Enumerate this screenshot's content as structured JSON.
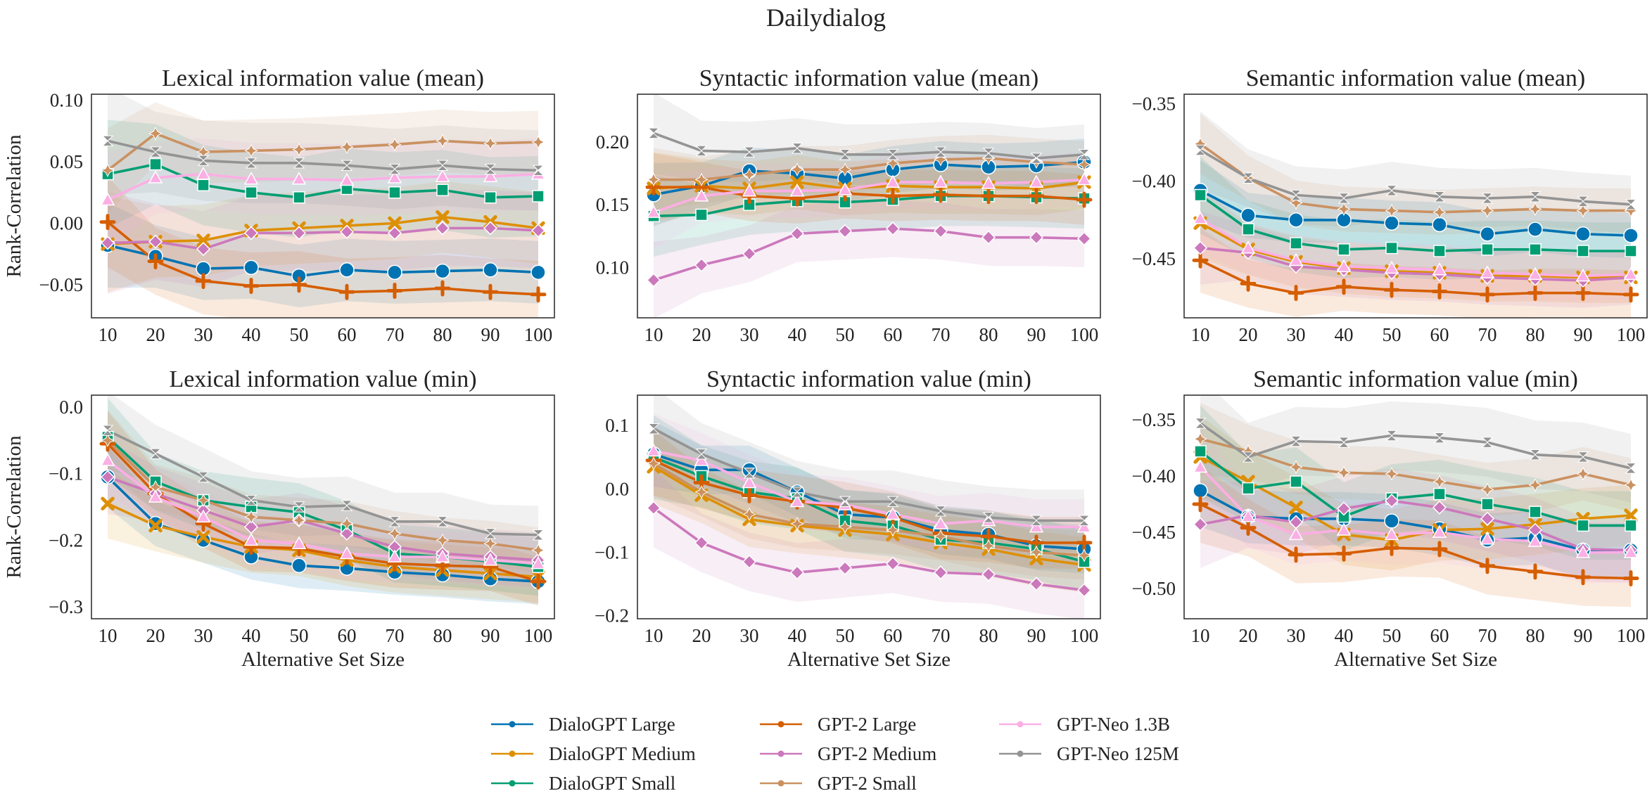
{
  "title": "Dailydialog",
  "colors": {
    "DialoGPT Large": "#0173b2",
    "DialoGPT Medium": "#de8f05",
    "DialoGPT Small": "#029e73",
    "GPT-2 Large": "#d55e00",
    "GPT-2 Medium": "#cc78bc",
    "GPT-2 Small": "#ca9161",
    "GPT-Neo 1.3B": "#fbafe4",
    "GPT-Neo 125M": "#949494"
  },
  "legend": [
    "DialoGPT Large",
    "DialoGPT Medium",
    "DialoGPT Small",
    "GPT-2 Large",
    "GPT-2 Medium",
    "GPT-2 Small",
    "GPT-Neo 1.3B",
    "GPT-Neo 125M"
  ],
  "chart_data": [
    {
      "type": "line",
      "title": "Lexical information value (mean)",
      "xlabel": "",
      "ylabel": "Rank-Correlation",
      "x": [
        10,
        20,
        30,
        40,
        50,
        60,
        70,
        80,
        90,
        100
      ],
      "ylim": [
        -0.077,
        0.105
      ],
      "yticks": [
        0.1,
        0.05,
        0.0,
        -0.05
      ],
      "ytick_labels": [
        "0.10",
        "0.05",
        "0.00",
        "−0.05"
      ],
      "band": 0.03,
      "series": [
        {
          "name": "DialoGPT Large",
          "values": [
            -0.018,
            -0.027,
            -0.037,
            -0.036,
            -0.043,
            -0.038,
            -0.04,
            -0.039,
            -0.038,
            -0.04
          ]
        },
        {
          "name": "DialoGPT Medium",
          "values": [
            -0.017,
            -0.015,
            -0.014,
            -0.006,
            -0.004,
            -0.002,
            0.0,
            0.005,
            0.001,
            -0.004
          ]
        },
        {
          "name": "DialoGPT Small",
          "values": [
            0.04,
            0.048,
            0.031,
            0.025,
            0.021,
            0.028,
            0.025,
            0.027,
            0.021,
            0.022
          ]
        },
        {
          "name": "GPT-2 Large",
          "values": [
            0.001,
            -0.031,
            -0.047,
            -0.051,
            -0.05,
            -0.056,
            -0.055,
            -0.053,
            -0.056,
            -0.058
          ]
        },
        {
          "name": "GPT-2 Medium",
          "values": [
            -0.016,
            -0.015,
            -0.021,
            -0.008,
            -0.008,
            -0.007,
            -0.008,
            -0.004,
            -0.004,
            -0.006
          ]
        },
        {
          "name": "GPT-2 Small",
          "values": [
            0.043,
            0.073,
            0.058,
            0.059,
            0.06,
            0.062,
            0.064,
            0.067,
            0.065,
            0.066
          ]
        },
        {
          "name": "GPT-Neo 1.3B",
          "values": [
            0.019,
            0.037,
            0.04,
            0.036,
            0.036,
            0.035,
            0.037,
            0.038,
            0.038,
            0.04
          ]
        },
        {
          "name": "GPT-Neo 125M",
          "values": [
            0.067,
            0.058,
            0.051,
            0.049,
            0.049,
            0.047,
            0.044,
            0.047,
            0.044,
            0.043
          ]
        }
      ]
    },
    {
      "type": "line",
      "title": "Syntactic information value (mean)",
      "xlabel": "",
      "ylabel": "",
      "x": [
        10,
        20,
        30,
        40,
        50,
        60,
        70,
        80,
        90,
        100
      ],
      "ylim": [
        0.06,
        0.238
      ],
      "yticks": [
        0.2,
        0.15,
        0.1
      ],
      "ytick_labels": [
        "0.20",
        "0.15",
        "0.10"
      ],
      "band": 0.022,
      "series": [
        {
          "name": "DialoGPT Large",
          "values": [
            0.158,
            0.165,
            0.177,
            0.175,
            0.171,
            0.178,
            0.182,
            0.18,
            0.181,
            0.184
          ]
        },
        {
          "name": "DialoGPT Medium",
          "values": [
            0.163,
            0.165,
            0.163,
            0.168,
            0.163,
            0.165,
            0.164,
            0.164,
            0.163,
            0.168
          ]
        },
        {
          "name": "DialoGPT Small",
          "values": [
            0.141,
            0.142,
            0.15,
            0.153,
            0.152,
            0.154,
            0.157,
            0.157,
            0.156,
            0.155
          ]
        },
        {
          "name": "GPT-2 Large",
          "values": [
            0.164,
            0.164,
            0.157,
            0.155,
            0.159,
            0.157,
            0.158,
            0.157,
            0.157,
            0.154
          ]
        },
        {
          "name": "GPT-2 Medium",
          "values": [
            0.09,
            0.102,
            0.111,
            0.127,
            0.129,
            0.131,
            0.129,
            0.124,
            0.124,
            0.123
          ]
        },
        {
          "name": "GPT-2 Small",
          "values": [
            0.17,
            0.17,
            0.174,
            0.178,
            0.178,
            0.183,
            0.186,
            0.187,
            0.184,
            0.182
          ]
        },
        {
          "name": "GPT-Neo 1.3B",
          "values": [
            0.144,
            0.157,
            0.161,
            0.161,
            0.162,
            0.168,
            0.168,
            0.167,
            0.168,
            0.17
          ]
        },
        {
          "name": "GPT-Neo 125M",
          "values": [
            0.207,
            0.193,
            0.192,
            0.195,
            0.19,
            0.19,
            0.192,
            0.191,
            0.187,
            0.19
          ]
        }
      ]
    },
    {
      "type": "line",
      "title": "Semantic information value (mean)",
      "xlabel": "",
      "ylabel": "",
      "x": [
        10,
        20,
        30,
        40,
        50,
        60,
        70,
        80,
        90,
        100
      ],
      "ylim": [
        -0.488,
        -0.344
      ],
      "yticks": [
        -0.35,
        -0.4,
        -0.45
      ],
      "ytick_labels": [
        "−0.35",
        "−0.40",
        "−0.45"
      ],
      "band": 0.017,
      "series": [
        {
          "name": "DialoGPT Large",
          "values": [
            -0.406,
            -0.422,
            -0.425,
            -0.425,
            -0.427,
            -0.428,
            -0.434,
            -0.431,
            -0.434,
            -0.435
          ]
        },
        {
          "name": "DialoGPT Medium",
          "values": [
            -0.427,
            -0.444,
            -0.452,
            -0.456,
            -0.458,
            -0.459,
            -0.461,
            -0.461,
            -0.462,
            -0.462
          ]
        },
        {
          "name": "DialoGPT Small",
          "values": [
            -0.409,
            -0.431,
            -0.44,
            -0.444,
            -0.443,
            -0.445,
            -0.444,
            -0.444,
            -0.445,
            -0.445
          ]
        },
        {
          "name": "GPT-2 Large",
          "values": [
            -0.451,
            -0.466,
            -0.472,
            -0.468,
            -0.47,
            -0.471,
            -0.473,
            -0.472,
            -0.472,
            -0.473
          ]
        },
        {
          "name": "GPT-2 Medium",
          "values": [
            -0.443,
            -0.446,
            -0.455,
            -0.457,
            -0.459,
            -0.46,
            -0.462,
            -0.463,
            -0.464,
            -0.462
          ]
        },
        {
          "name": "GPT-2 Small",
          "values": [
            -0.376,
            -0.398,
            -0.414,
            -0.418,
            -0.419,
            -0.42,
            -0.419,
            -0.418,
            -0.419,
            -0.419
          ]
        },
        {
          "name": "GPT-Neo 1.3B",
          "values": [
            -0.424,
            -0.443,
            -0.451,
            -0.455,
            -0.456,
            -0.457,
            -0.459,
            -0.46,
            -0.461,
            -0.46
          ]
        },
        {
          "name": "GPT-Neo 125M",
          "values": [
            -0.38,
            -0.398,
            -0.409,
            -0.411,
            -0.406,
            -0.41,
            -0.411,
            -0.41,
            -0.413,
            -0.415
          ]
        }
      ]
    },
    {
      "type": "line",
      "title": "Lexical information value (min)",
      "xlabel": "Alternative Set Size",
      "ylabel": "Rank-Correlation",
      "x": [
        10,
        20,
        30,
        40,
        50,
        60,
        70,
        80,
        90,
        100
      ],
      "ylim": [
        -0.318,
        0.018
      ],
      "yticks": [
        0.0,
        -0.1,
        -0.2,
        -0.3
      ],
      "ytick_labels": [
        "0.0",
        "−0.1",
        "−0.2",
        "−0.3"
      ],
      "band": 0.04,
      "series": [
        {
          "name": "DialoGPT Large",
          "values": [
            -0.105,
            -0.175,
            -0.2,
            -0.225,
            -0.238,
            -0.242,
            -0.248,
            -0.252,
            -0.258,
            -0.262
          ]
        },
        {
          "name": "DialoGPT Medium",
          "values": [
            -0.145,
            -0.178,
            -0.195,
            -0.21,
            -0.215,
            -0.23,
            -0.24,
            -0.245,
            -0.25,
            -0.255
          ]
        },
        {
          "name": "DialoGPT Small",
          "values": [
            -0.045,
            -0.112,
            -0.14,
            -0.15,
            -0.158,
            -0.185,
            -0.22,
            -0.225,
            -0.232,
            -0.24
          ]
        },
        {
          "name": "GPT-2 Large",
          "values": [
            -0.055,
            -0.13,
            -0.175,
            -0.21,
            -0.212,
            -0.225,
            -0.235,
            -0.238,
            -0.24,
            -0.262
          ]
        },
        {
          "name": "GPT-2 Medium",
          "values": [
            -0.105,
            -0.13,
            -0.155,
            -0.18,
            -0.17,
            -0.19,
            -0.21,
            -0.22,
            -0.225,
            -0.23
          ]
        },
        {
          "name": "GPT-2 Small",
          "values": [
            -0.05,
            -0.12,
            -0.14,
            -0.165,
            -0.17,
            -0.175,
            -0.19,
            -0.2,
            -0.205,
            -0.215
          ]
        },
        {
          "name": "GPT-Neo 1.3B",
          "values": [
            -0.08,
            -0.135,
            -0.165,
            -0.2,
            -0.205,
            -0.22,
            -0.225,
            -0.225,
            -0.23,
            -0.235
          ]
        },
        {
          "name": "GPT-Neo 125M",
          "values": [
            -0.035,
            -0.07,
            -0.105,
            -0.14,
            -0.15,
            -0.148,
            -0.172,
            -0.172,
            -0.19,
            -0.192
          ]
        }
      ]
    },
    {
      "type": "line",
      "title": "Syntactic information value (min)",
      "xlabel": "Alternative Set Size",
      "ylabel": "",
      "x": [
        10,
        20,
        30,
        40,
        50,
        60,
        70,
        80,
        90,
        100
      ],
      "ylim": [
        -0.205,
        0.148
      ],
      "yticks": [
        0.1,
        0.0,
        -0.1,
        -0.2
      ],
      "ytick_labels": [
        "0.1",
        "0.0",
        "−0.1",
        "−0.2"
      ],
      "band": 0.045,
      "series": [
        {
          "name": "DialoGPT Large",
          "values": [
            0.055,
            0.03,
            0.03,
            -0.005,
            -0.04,
            -0.045,
            -0.065,
            -0.072,
            -0.09,
            -0.095
          ]
        },
        {
          "name": "DialoGPT Medium",
          "values": [
            0.035,
            -0.01,
            -0.048,
            -0.058,
            -0.065,
            -0.072,
            -0.085,
            -0.095,
            -0.11,
            -0.12
          ]
        },
        {
          "name": "DialoGPT Small",
          "values": [
            0.05,
            0.02,
            -0.005,
            -0.015,
            -0.05,
            -0.058,
            -0.08,
            -0.085,
            -0.095,
            -0.115
          ]
        },
        {
          "name": "GPT-2 Large",
          "values": [
            0.045,
            0.01,
            -0.01,
            -0.02,
            -0.03,
            -0.045,
            -0.07,
            -0.075,
            -0.085,
            -0.085
          ]
        },
        {
          "name": "GPT-2 Medium",
          "values": [
            -0.03,
            -0.085,
            -0.115,
            -0.132,
            -0.125,
            -0.118,
            -0.132,
            -0.135,
            -0.15,
            -0.16
          ]
        },
        {
          "name": "GPT-2 Small",
          "values": [
            0.04,
            -0.005,
            -0.04,
            -0.055,
            -0.06,
            -0.065,
            -0.075,
            -0.09,
            -0.1,
            -0.105
          ]
        },
        {
          "name": "GPT-Neo 1.3B",
          "values": [
            0.06,
            0.045,
            0.01,
            -0.02,
            -0.025,
            -0.04,
            -0.055,
            -0.05,
            -0.06,
            -0.06
          ]
        },
        {
          "name": "GPT-Neo 125M",
          "values": [
            0.095,
            0.055,
            0.025,
            -0.005,
            -0.02,
            -0.02,
            -0.035,
            -0.045,
            -0.05,
            -0.05
          ]
        }
      ]
    },
    {
      "type": "line",
      "title": "Semantic information value (min)",
      "xlabel": "Alternative Set Size",
      "ylabel": "",
      "x": [
        10,
        20,
        30,
        40,
        50,
        60,
        70,
        80,
        90,
        100
      ],
      "ylim": [
        -0.527,
        -0.328
      ],
      "yticks": [
        -0.35,
        -0.4,
        -0.45,
        -0.5
      ],
      "ytick_labels": [
        "−0.35",
        "−0.40",
        "−0.45",
        "−0.50"
      ],
      "band": 0.028,
      "series": [
        {
          "name": "DialoGPT Large",
          "values": [
            -0.413,
            -0.436,
            -0.438,
            -0.438,
            -0.44,
            -0.447,
            -0.457,
            -0.455,
            -0.466,
            -0.466
          ]
        },
        {
          "name": "DialoGPT Medium",
          "values": [
            -0.383,
            -0.405,
            -0.428,
            -0.452,
            -0.457,
            -0.448,
            -0.447,
            -0.443,
            -0.438,
            -0.435
          ]
        },
        {
          "name": "DialoGPT Small",
          "values": [
            -0.378,
            -0.411,
            -0.405,
            -0.436,
            -0.42,
            -0.416,
            -0.425,
            -0.432,
            -0.444,
            -0.444
          ]
        },
        {
          "name": "GPT-2 Large",
          "values": [
            -0.425,
            -0.446,
            -0.47,
            -0.469,
            -0.464,
            -0.465,
            -0.48,
            -0.485,
            -0.49,
            -0.491
          ]
        },
        {
          "name": "GPT-2 Medium",
          "values": [
            -0.443,
            -0.435,
            -0.441,
            -0.429,
            -0.422,
            -0.428,
            -0.438,
            -0.448,
            -0.465,
            -0.466
          ]
        },
        {
          "name": "GPT-2 Small",
          "values": [
            -0.367,
            -0.378,
            -0.392,
            -0.397,
            -0.398,
            -0.405,
            -0.412,
            -0.408,
            -0.398,
            -0.408
          ]
        },
        {
          "name": "GPT-Neo 1.3B",
          "values": [
            -0.392,
            -0.436,
            -0.452,
            -0.448,
            -0.452,
            -0.45,
            -0.456,
            -0.458,
            -0.468,
            -0.468
          ]
        },
        {
          "name": "GPT-Neo 125M",
          "values": [
            -0.353,
            -0.383,
            -0.369,
            -0.37,
            -0.364,
            -0.366,
            -0.37,
            -0.381,
            -0.383,
            -0.393
          ]
        }
      ]
    }
  ]
}
